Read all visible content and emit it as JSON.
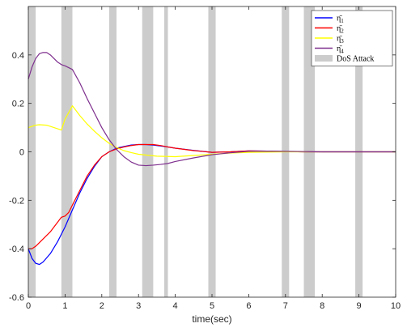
{
  "chart_data": {
    "type": "line",
    "title": "",
    "xlabel": "time(sec)",
    "ylabel": "",
    "xlim": [
      0,
      10
    ],
    "ylim": [
      -0.6,
      0.6
    ],
    "x_ticks": [
      0,
      1,
      2,
      3,
      4,
      5,
      6,
      7,
      8,
      9,
      10
    ],
    "x_tick_labels": [
      "0",
      "1",
      "2",
      "3",
      "4",
      "5",
      "6",
      "7",
      "8",
      "9",
      "10"
    ],
    "y_ticks": [
      -0.6,
      -0.4,
      -0.2,
      0,
      0.2,
      0.4
    ],
    "y_tick_labels": [
      "-0.6",
      "-0.4",
      "-0.2",
      "0",
      "0.2",
      "0.4"
    ],
    "grid": false,
    "legend_position": "top-right",
    "attack_label": "DoS Attack",
    "attack_color": "#cccccc",
    "attack_intervals": [
      [
        0.0,
        0.2
      ],
      [
        0.9,
        1.2
      ],
      [
        2.2,
        2.4
      ],
      [
        3.1,
        3.4
      ],
      [
        3.7,
        3.8
      ],
      [
        4.9,
        5.1
      ],
      [
        6.9,
        7.1
      ],
      [
        7.5,
        7.8
      ],
      [
        8.9,
        9.1
      ]
    ],
    "series": [
      {
        "name": "η̄₁",
        "legend_base": "η̄",
        "legend_sub": "1",
        "color": "#0000ff",
        "x": [
          0,
          0.1,
          0.2,
          0.3,
          0.4,
          0.6,
          0.8,
          1.0,
          1.2,
          1.4,
          1.6,
          1.8,
          2.0,
          2.2,
          2.4,
          2.6,
          2.8,
          3.0,
          3.2,
          3.4,
          3.6,
          3.8,
          4.0,
          4.5,
          5.0,
          5.5,
          6.0,
          6.5,
          7.0,
          7.5,
          8.0,
          9.0,
          10.0
        ],
        "y": [
          -0.4,
          -0.44,
          -0.46,
          -0.465,
          -0.455,
          -0.42,
          -0.37,
          -0.31,
          -0.24,
          -0.17,
          -0.11,
          -0.06,
          -0.02,
          0.0,
          0.015,
          0.022,
          0.028,
          0.03,
          0.03,
          0.028,
          0.024,
          0.02,
          0.015,
          0.006,
          -0.002,
          0.0,
          0.004,
          0.003,
          0.001,
          0.0,
          0.0,
          0.0,
          0.0
        ]
      },
      {
        "name": "η̄₂",
        "legend_base": "η̄",
        "legend_sub": "2",
        "color": "#ff0000",
        "x": [
          0,
          0.1,
          0.2,
          0.4,
          0.6,
          0.8,
          0.9,
          1.0,
          1.1,
          1.2,
          1.4,
          1.6,
          1.8,
          2.0,
          2.2,
          2.4,
          2.6,
          2.8,
          3.0,
          3.2,
          3.4,
          3.6,
          3.8,
          4.0,
          4.5,
          5.0,
          5.5,
          6.0,
          6.5,
          7.0,
          7.5,
          8.0,
          9.0,
          10.0
        ],
        "y": [
          -0.4,
          -0.4,
          -0.39,
          -0.36,
          -0.33,
          -0.29,
          -0.27,
          -0.265,
          -0.25,
          -0.22,
          -0.16,
          -0.1,
          -0.055,
          -0.02,
          0.0,
          0.012,
          0.02,
          0.026,
          0.03,
          0.03,
          0.03,
          0.026,
          0.02,
          0.015,
          0.005,
          -0.002,
          0.0,
          0.004,
          0.003,
          0.001,
          0.0,
          0.0,
          0.0,
          0.0
        ]
      },
      {
        "name": "η̄₃",
        "legend_base": "η̄",
        "legend_sub": "3",
        "color": "#ffff00",
        "x": [
          0,
          0.1,
          0.2,
          0.3,
          0.5,
          0.7,
          0.9,
          1.0,
          1.2,
          1.4,
          1.6,
          1.8,
          2.0,
          2.2,
          2.4,
          2.6,
          2.8,
          3.0,
          3.5,
          4.0,
          4.5,
          5.0,
          5.5,
          6.0,
          7.0,
          8.0,
          9.0,
          10.0
        ],
        "y": [
          0.1,
          0.105,
          0.11,
          0.112,
          0.11,
          0.1,
          0.09,
          0.135,
          0.19,
          0.15,
          0.115,
          0.085,
          0.058,
          0.035,
          0.018,
          0.005,
          -0.003,
          -0.01,
          -0.018,
          -0.02,
          -0.015,
          -0.01,
          -0.005,
          -0.002,
          0.0,
          0.0,
          0.0,
          0.0
        ]
      },
      {
        "name": "η̄₄",
        "legend_base": "η̄",
        "legend_sub": "4",
        "color": "#7e2f8e",
        "x": [
          0,
          0.1,
          0.2,
          0.3,
          0.4,
          0.5,
          0.6,
          0.7,
          0.8,
          0.9,
          1.0,
          1.2,
          1.4,
          1.6,
          1.8,
          2.0,
          2.2,
          2.4,
          2.6,
          2.8,
          3.0,
          3.2,
          3.4,
          3.6,
          3.8,
          4.0,
          4.5,
          5.0,
          5.5,
          6.0,
          6.5,
          7.0,
          7.5,
          8.0,
          9.0,
          10.0
        ],
        "y": [
          0.3,
          0.35,
          0.385,
          0.405,
          0.41,
          0.41,
          0.4,
          0.385,
          0.37,
          0.36,
          0.355,
          0.34,
          0.285,
          0.22,
          0.16,
          0.1,
          0.05,
          0.01,
          -0.02,
          -0.042,
          -0.055,
          -0.057,
          -0.055,
          -0.052,
          -0.048,
          -0.04,
          -0.025,
          -0.012,
          -0.004,
          0.002,
          0.003,
          0.002,
          0.001,
          0.0,
          0.0,
          0.0
        ]
      }
    ]
  }
}
